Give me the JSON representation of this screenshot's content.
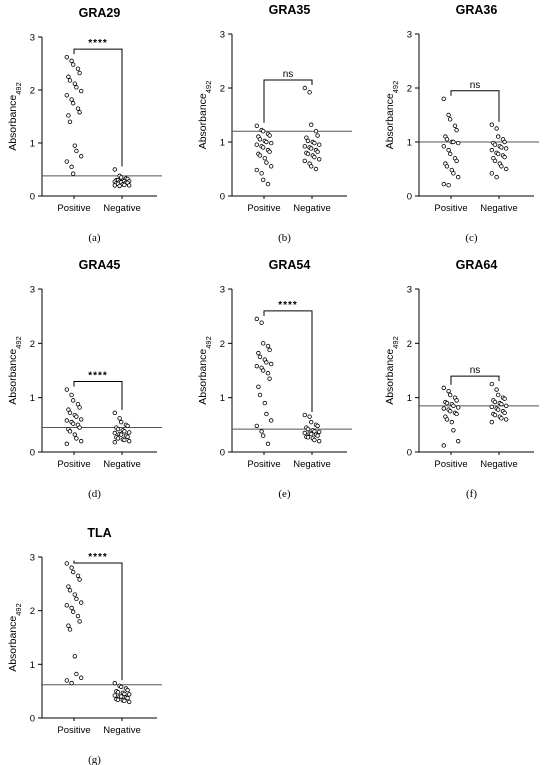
{
  "chart_data": [
    {
      "type": "scatter",
      "title": "GRA29",
      "caption": "(a)",
      "ylabel": "Absorbance",
      "ylabel_sub": "492",
      "ylim": [
        0,
        3
      ],
      "yticks": [
        "0",
        "1",
        "2",
        "3"
      ],
      "categories": [
        "Positive",
        "Negative"
      ],
      "cutoff": 0.38,
      "significance": "****",
      "series": [
        {
          "values": [
            2.62,
            2.55,
            2.48,
            2.4,
            2.32,
            2.25,
            2.18,
            2.12,
            2.05,
            1.98,
            1.9,
            1.82,
            1.75,
            1.65,
            1.58,
            1.52,
            1.4,
            0.95,
            0.85,
            0.75,
            0.65,
            0.55,
            0.42
          ]
        },
        {
          "values": [
            0.5,
            0.38,
            0.35,
            0.33,
            0.32,
            0.3,
            0.3,
            0.29,
            0.28,
            0.28,
            0.27,
            0.27,
            0.26,
            0.25,
            0.25,
            0.24,
            0.23,
            0.22,
            0.21,
            0.2,
            0.2,
            0.19
          ]
        }
      ]
    },
    {
      "type": "scatter",
      "title": "GRA35",
      "caption": "(b)",
      "ylabel": "Absorbance",
      "ylabel_sub": "492",
      "ylim": [
        0,
        3
      ],
      "yticks": [
        "0",
        "1",
        "2",
        "3"
      ],
      "categories": [
        "Positive",
        "Negative"
      ],
      "cutoff": 1.2,
      "significance": "ns",
      "series": [
        {
          "values": [
            1.3,
            1.22,
            1.2,
            1.15,
            1.12,
            1.1,
            1.05,
            1.02,
            1.0,
            0.98,
            0.95,
            0.92,
            0.9,
            0.85,
            0.82,
            0.78,
            0.75,
            0.7,
            0.62,
            0.55,
            0.48,
            0.42,
            0.3,
            0.22
          ]
        },
        {
          "values": [
            2.0,
            1.92,
            1.32,
            1.2,
            1.12,
            1.08,
            1.02,
            1.0,
            0.98,
            0.95,
            0.92,
            0.9,
            0.88,
            0.85,
            0.82,
            0.8,
            0.78,
            0.75,
            0.72,
            0.68,
            0.65,
            0.6,
            0.55,
            0.5
          ]
        }
      ]
    },
    {
      "type": "scatter",
      "title": "GRA36",
      "caption": "(c)",
      "ylabel": "Absorbance",
      "ylabel_sub": "492",
      "ylim": [
        0,
        3
      ],
      "yticks": [
        "0",
        "1",
        "2",
        "3"
      ],
      "categories": [
        "Positive",
        "Negative"
      ],
      "cutoff": 1.0,
      "significance": "ns",
      "series": [
        {
          "values": [
            1.8,
            1.5,
            1.42,
            1.3,
            1.22,
            1.1,
            1.05,
            1.0,
            1.0,
            0.98,
            0.92,
            0.85,
            0.78,
            0.7,
            0.65,
            0.6,
            0.55,
            0.48,
            0.42,
            0.35,
            0.22,
            0.2
          ]
        },
        {
          "values": [
            1.32,
            1.25,
            1.1,
            1.05,
            1.0,
            0.98,
            0.95,
            0.92,
            0.9,
            0.88,
            0.85,
            0.8,
            0.78,
            0.75,
            0.72,
            0.7,
            0.65,
            0.6,
            0.55,
            0.5,
            0.42,
            0.35
          ]
        }
      ]
    },
    {
      "type": "scatter",
      "title": "GRA45",
      "caption": "(d)",
      "ylabel": "Absorbance",
      "ylabel_sub": "492",
      "ylim": [
        0,
        3
      ],
      "yticks": [
        "0",
        "1",
        "2",
        "3"
      ],
      "categories": [
        "Positive",
        "Negative"
      ],
      "cutoff": 0.45,
      "significance": "****",
      "series": [
        {
          "values": [
            1.15,
            1.05,
            0.95,
            0.88,
            0.82,
            0.78,
            0.72,
            0.68,
            0.65,
            0.6,
            0.58,
            0.55,
            0.52,
            0.5,
            0.45,
            0.42,
            0.38,
            0.32,
            0.25,
            0.2,
            0.15
          ]
        },
        {
          "values": [
            0.72,
            0.62,
            0.55,
            0.5,
            0.48,
            0.45,
            0.42,
            0.4,
            0.38,
            0.36,
            0.35,
            0.33,
            0.32,
            0.3,
            0.28,
            0.27,
            0.25,
            0.23,
            0.22,
            0.2,
            0.18
          ]
        }
      ]
    },
    {
      "type": "scatter",
      "title": "GRA54",
      "caption": "(e)",
      "ylabel": "Absorbance",
      "ylabel_sub": "492",
      "ylim": [
        0,
        3
      ],
      "yticks": [
        "0",
        "1",
        "2",
        "3"
      ],
      "categories": [
        "Positive",
        "Negative"
      ],
      "cutoff": 0.42,
      "significance": "****",
      "series": [
        {
          "values": [
            2.45,
            2.38,
            2.0,
            1.95,
            1.88,
            1.82,
            1.75,
            1.7,
            1.65,
            1.62,
            1.58,
            1.55,
            1.5,
            1.45,
            1.35,
            1.2,
            1.05,
            0.9,
            0.7,
            0.58,
            0.48,
            0.38,
            0.3,
            0.15
          ]
        },
        {
          "values": [
            0.68,
            0.65,
            0.55,
            0.5,
            0.48,
            0.45,
            0.42,
            0.4,
            0.38,
            0.37,
            0.35,
            0.34,
            0.33,
            0.32,
            0.3,
            0.28,
            0.27,
            0.25,
            0.22,
            0.2
          ]
        }
      ]
    },
    {
      "type": "scatter",
      "title": "GRA64",
      "caption": "(f)",
      "ylabel": "Absorbance",
      "ylabel_sub": "492",
      "ylim": [
        0,
        3
      ],
      "yticks": [
        "0",
        "1",
        "2",
        "3"
      ],
      "categories": [
        "Positive",
        "Negative"
      ],
      "cutoff": 0.85,
      "significance": "ns",
      "series": [
        {
          "values": [
            1.18,
            1.12,
            1.05,
            1.0,
            0.95,
            0.92,
            0.9,
            0.88,
            0.85,
            0.82,
            0.8,
            0.78,
            0.75,
            0.72,
            0.7,
            0.65,
            0.6,
            0.55,
            0.4,
            0.2,
            0.12
          ]
        },
        {
          "values": [
            1.25,
            1.15,
            1.05,
            1.0,
            0.98,
            0.95,
            0.92,
            0.9,
            0.88,
            0.85,
            0.83,
            0.8,
            0.78,
            0.75,
            0.72,
            0.7,
            0.68,
            0.65,
            0.62,
            0.6,
            0.55
          ]
        }
      ]
    },
    {
      "type": "scatter",
      "title": "TLA",
      "caption": "(g)",
      "ylabel": "Absorbance",
      "ylabel_sub": "492",
      "ylim": [
        0,
        3
      ],
      "yticks": [
        "0",
        "1",
        "2",
        "3"
      ],
      "categories": [
        "Positive",
        "Negative"
      ],
      "cutoff": 0.62,
      "significance": "****",
      "series": [
        {
          "values": [
            2.88,
            2.8,
            2.72,
            2.65,
            2.58,
            2.45,
            2.38,
            2.3,
            2.22,
            2.15,
            2.1,
            2.05,
            1.98,
            1.9,
            1.8,
            1.72,
            1.65,
            1.15,
            0.82,
            0.75,
            0.7,
            0.65
          ]
        },
        {
          "values": [
            0.65,
            0.6,
            0.58,
            0.55,
            0.52,
            0.5,
            0.48,
            0.47,
            0.45,
            0.44,
            0.42,
            0.4,
            0.4,
            0.38,
            0.37,
            0.35,
            0.34,
            0.33,
            0.32,
            0.3
          ]
        }
      ]
    }
  ]
}
